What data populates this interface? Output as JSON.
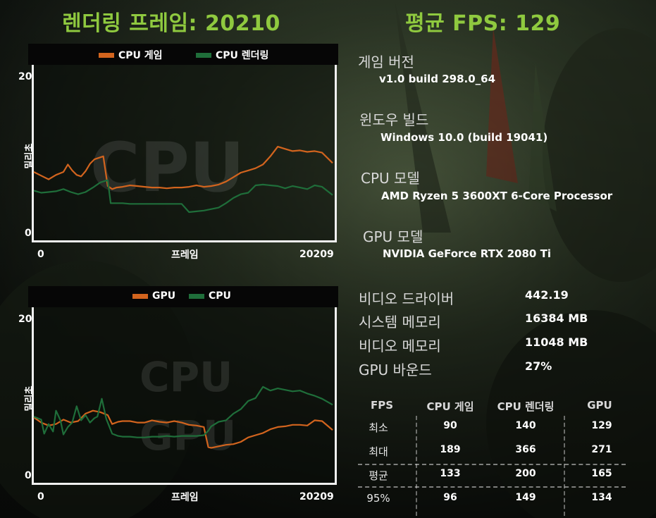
{
  "header": {
    "frames_label": "렌더링 프레임: 20210",
    "fps_label": "평균 FPS: 129"
  },
  "colors": {
    "accent_green": "#8fc93f",
    "series_orange": "#d2641e",
    "series_green": "#1f6e3a"
  },
  "chart_data": [
    {
      "type": "line",
      "title": "",
      "watermark": "CPU",
      "xlabel": "프레임",
      "ylabel": "밀리초",
      "xlim": [
        0,
        20209
      ],
      "ylim": [
        0,
        20
      ],
      "x_tick_labels": [
        "0",
        "20209"
      ],
      "y_tick_labels": [
        "0",
        "20"
      ],
      "series": [
        {
          "name": "CPU 게임",
          "color": "#d2641e",
          "x": [
            0,
            500,
            1000,
            1500,
            2000,
            2300,
            2600,
            2900,
            3200,
            3500,
            3800,
            4100,
            4400,
            4700,
            5000,
            5300,
            5600,
            6000,
            6500,
            7000,
            7500,
            8000,
            8500,
            9000,
            9500,
            10000,
            10500,
            11000,
            11500,
            12000,
            12500,
            13000,
            13500,
            14000,
            14500,
            15000,
            15500,
            16000,
            16500,
            17000,
            17500,
            18000,
            18500,
            19000,
            19500,
            20209
          ],
          "values": [
            7.3,
            6.8,
            6.3,
            6.9,
            7.3,
            8.3,
            7.5,
            6.9,
            6.7,
            7.4,
            8.4,
            9.0,
            9.2,
            9.4,
            5.4,
            5.0,
            5.2,
            5.3,
            5.5,
            5.4,
            5.3,
            5.2,
            5.2,
            5.1,
            5.2,
            5.2,
            5.3,
            5.5,
            5.3,
            5.4,
            5.6,
            6.0,
            6.6,
            7.2,
            7.5,
            7.8,
            8.3,
            9.4,
            10.7,
            10.4,
            10.1,
            10.2,
            10.0,
            10.1,
            9.9,
            8.5
          ]
        },
        {
          "name": "CPU 렌더링",
          "color": "#1f6e3a",
          "x": [
            0,
            500,
            1000,
            1500,
            2000,
            2500,
            3000,
            3500,
            4000,
            4500,
            5000,
            5200,
            5500,
            6000,
            6500,
            7000,
            7500,
            8000,
            8500,
            9000,
            9500,
            10000,
            10500,
            11000,
            11500,
            12000,
            12500,
            13000,
            13500,
            14000,
            14500,
            15000,
            15500,
            16000,
            16500,
            17000,
            17500,
            18000,
            18500,
            19000,
            19500,
            20209
          ],
          "values": [
            4.8,
            4.5,
            4.6,
            4.7,
            5.0,
            4.6,
            4.3,
            4.6,
            5.2,
            5.9,
            6.2,
            3.1,
            3.1,
            3.1,
            3.0,
            3.0,
            3.0,
            3.0,
            3.0,
            3.0,
            3.0,
            3.0,
            1.9,
            2.0,
            2.1,
            2.3,
            2.5,
            3.1,
            3.8,
            4.3,
            4.5,
            5.5,
            5.6,
            5.5,
            5.4,
            5.1,
            5.4,
            5.2,
            5.0,
            5.5,
            5.3,
            4.2
          ]
        }
      ]
    },
    {
      "type": "line",
      "title": "",
      "watermark": "CPU",
      "watermark2": "GPU",
      "xlabel": "프레임",
      "ylabel": "밀리초",
      "xlim": [
        0,
        20209
      ],
      "ylim": [
        0,
        20
      ],
      "x_tick_labels": [
        "0",
        "20209"
      ],
      "y_tick_labels": [
        "0",
        "20"
      ],
      "series": [
        {
          "name": "GPU",
          "color": "#d2641e",
          "x": [
            0,
            500,
            1000,
            1500,
            2000,
            2500,
            3000,
            3500,
            4000,
            4500,
            5000,
            5300,
            5700,
            6000,
            6500,
            7000,
            7500,
            8000,
            8500,
            9000,
            9500,
            10000,
            10500,
            11000,
            11500,
            11800,
            12000,
            12500,
            13000,
            13500,
            14000,
            14500,
            15000,
            15500,
            16000,
            16500,
            17000,
            17500,
            18000,
            18500,
            19000,
            19500,
            20209
          ],
          "values": [
            6.9,
            6.2,
            5.8,
            6.0,
            6.6,
            6.2,
            6.4,
            7.4,
            7.8,
            7.6,
            7.2,
            6.0,
            6.3,
            6.4,
            6.4,
            6.2,
            6.2,
            6.5,
            6.3,
            6.2,
            6.4,
            6.2,
            5.9,
            5.8,
            5.6,
            2.9,
            2.8,
            3.0,
            3.2,
            3.3,
            3.6,
            4.2,
            4.5,
            4.8,
            5.3,
            5.6,
            5.7,
            5.9,
            5.9,
            5.8,
            6.5,
            6.4,
            5.2
          ]
        },
        {
          "name": "CPU",
          "color": "#1f6e3a",
          "x": [
            0,
            500,
            700,
            1000,
            1300,
            1500,
            1800,
            2000,
            2300,
            2600,
            2900,
            3200,
            3500,
            3800,
            4100,
            4300,
            4600,
            4900,
            5300,
            5700,
            6000,
            6500,
            7000,
            7500,
            8000,
            8500,
            9000,
            9500,
            10000,
            10500,
            11000,
            11500,
            11800,
            12000,
            12500,
            13000,
            13500,
            14000,
            14500,
            15000,
            15500,
            16000,
            16500,
            17000,
            17500,
            18000,
            18500,
            19000,
            19500,
            20209
          ],
          "values": [
            7.0,
            6.6,
            4.7,
            6.0,
            5.0,
            7.8,
            6.5,
            4.6,
            5.6,
            6.2,
            8.4,
            6.5,
            7.2,
            6.2,
            6.8,
            7.0,
            9.4,
            6.7,
            4.7,
            4.4,
            4.3,
            4.3,
            4.2,
            4.2,
            4.3,
            4.3,
            4.4,
            4.3,
            4.4,
            4.4,
            4.4,
            4.5,
            5.1,
            5.7,
            6.3,
            6.5,
            7.4,
            8.0,
            9.1,
            9.5,
            11.0,
            10.5,
            10.8,
            10.6,
            10.4,
            10.5,
            10.1,
            9.8,
            9.4,
            8.6
          ]
        }
      ]
    }
  ],
  "info": {
    "game_version_label": "게임 버전",
    "game_version_value": "v1.0 build 298.0_64",
    "windows_build_label": "윈도우 빌드",
    "windows_build_value": "Windows 10.0 (build 19041)",
    "cpu_model_label": "CPU 모델",
    "cpu_model_value": "AMD Ryzen 5 3600XT 6-Core Processor",
    "gpu_model_label": "GPU 모델",
    "gpu_model_value": "NVIDIA GeForce RTX 2080 Ti",
    "video_driver_label": "비디오 드라이버",
    "video_driver_value": "442.19",
    "system_memory_label": "시스템 메모리",
    "system_memory_value": "16384 MB",
    "video_memory_label": "비디오 메모리",
    "video_memory_value": "11048 MB",
    "gpu_bound_label": "GPU 바운드",
    "gpu_bound_value": "27%"
  },
  "stats_table": {
    "headers": [
      "FPS",
      "CPU 게임",
      "CPU 렌더링",
      "GPU"
    ],
    "rows": [
      {
        "label": "최소",
        "cpu_game": "90",
        "cpu_render": "140",
        "gpu": "129"
      },
      {
        "label": "최대",
        "cpu_game": "189",
        "cpu_render": "366",
        "gpu": "271"
      },
      {
        "label": "평균",
        "cpu_game": "133",
        "cpu_render": "200",
        "gpu": "165"
      },
      {
        "label": "95%",
        "cpu_game": "96",
        "cpu_render": "149",
        "gpu": "134"
      }
    ]
  }
}
